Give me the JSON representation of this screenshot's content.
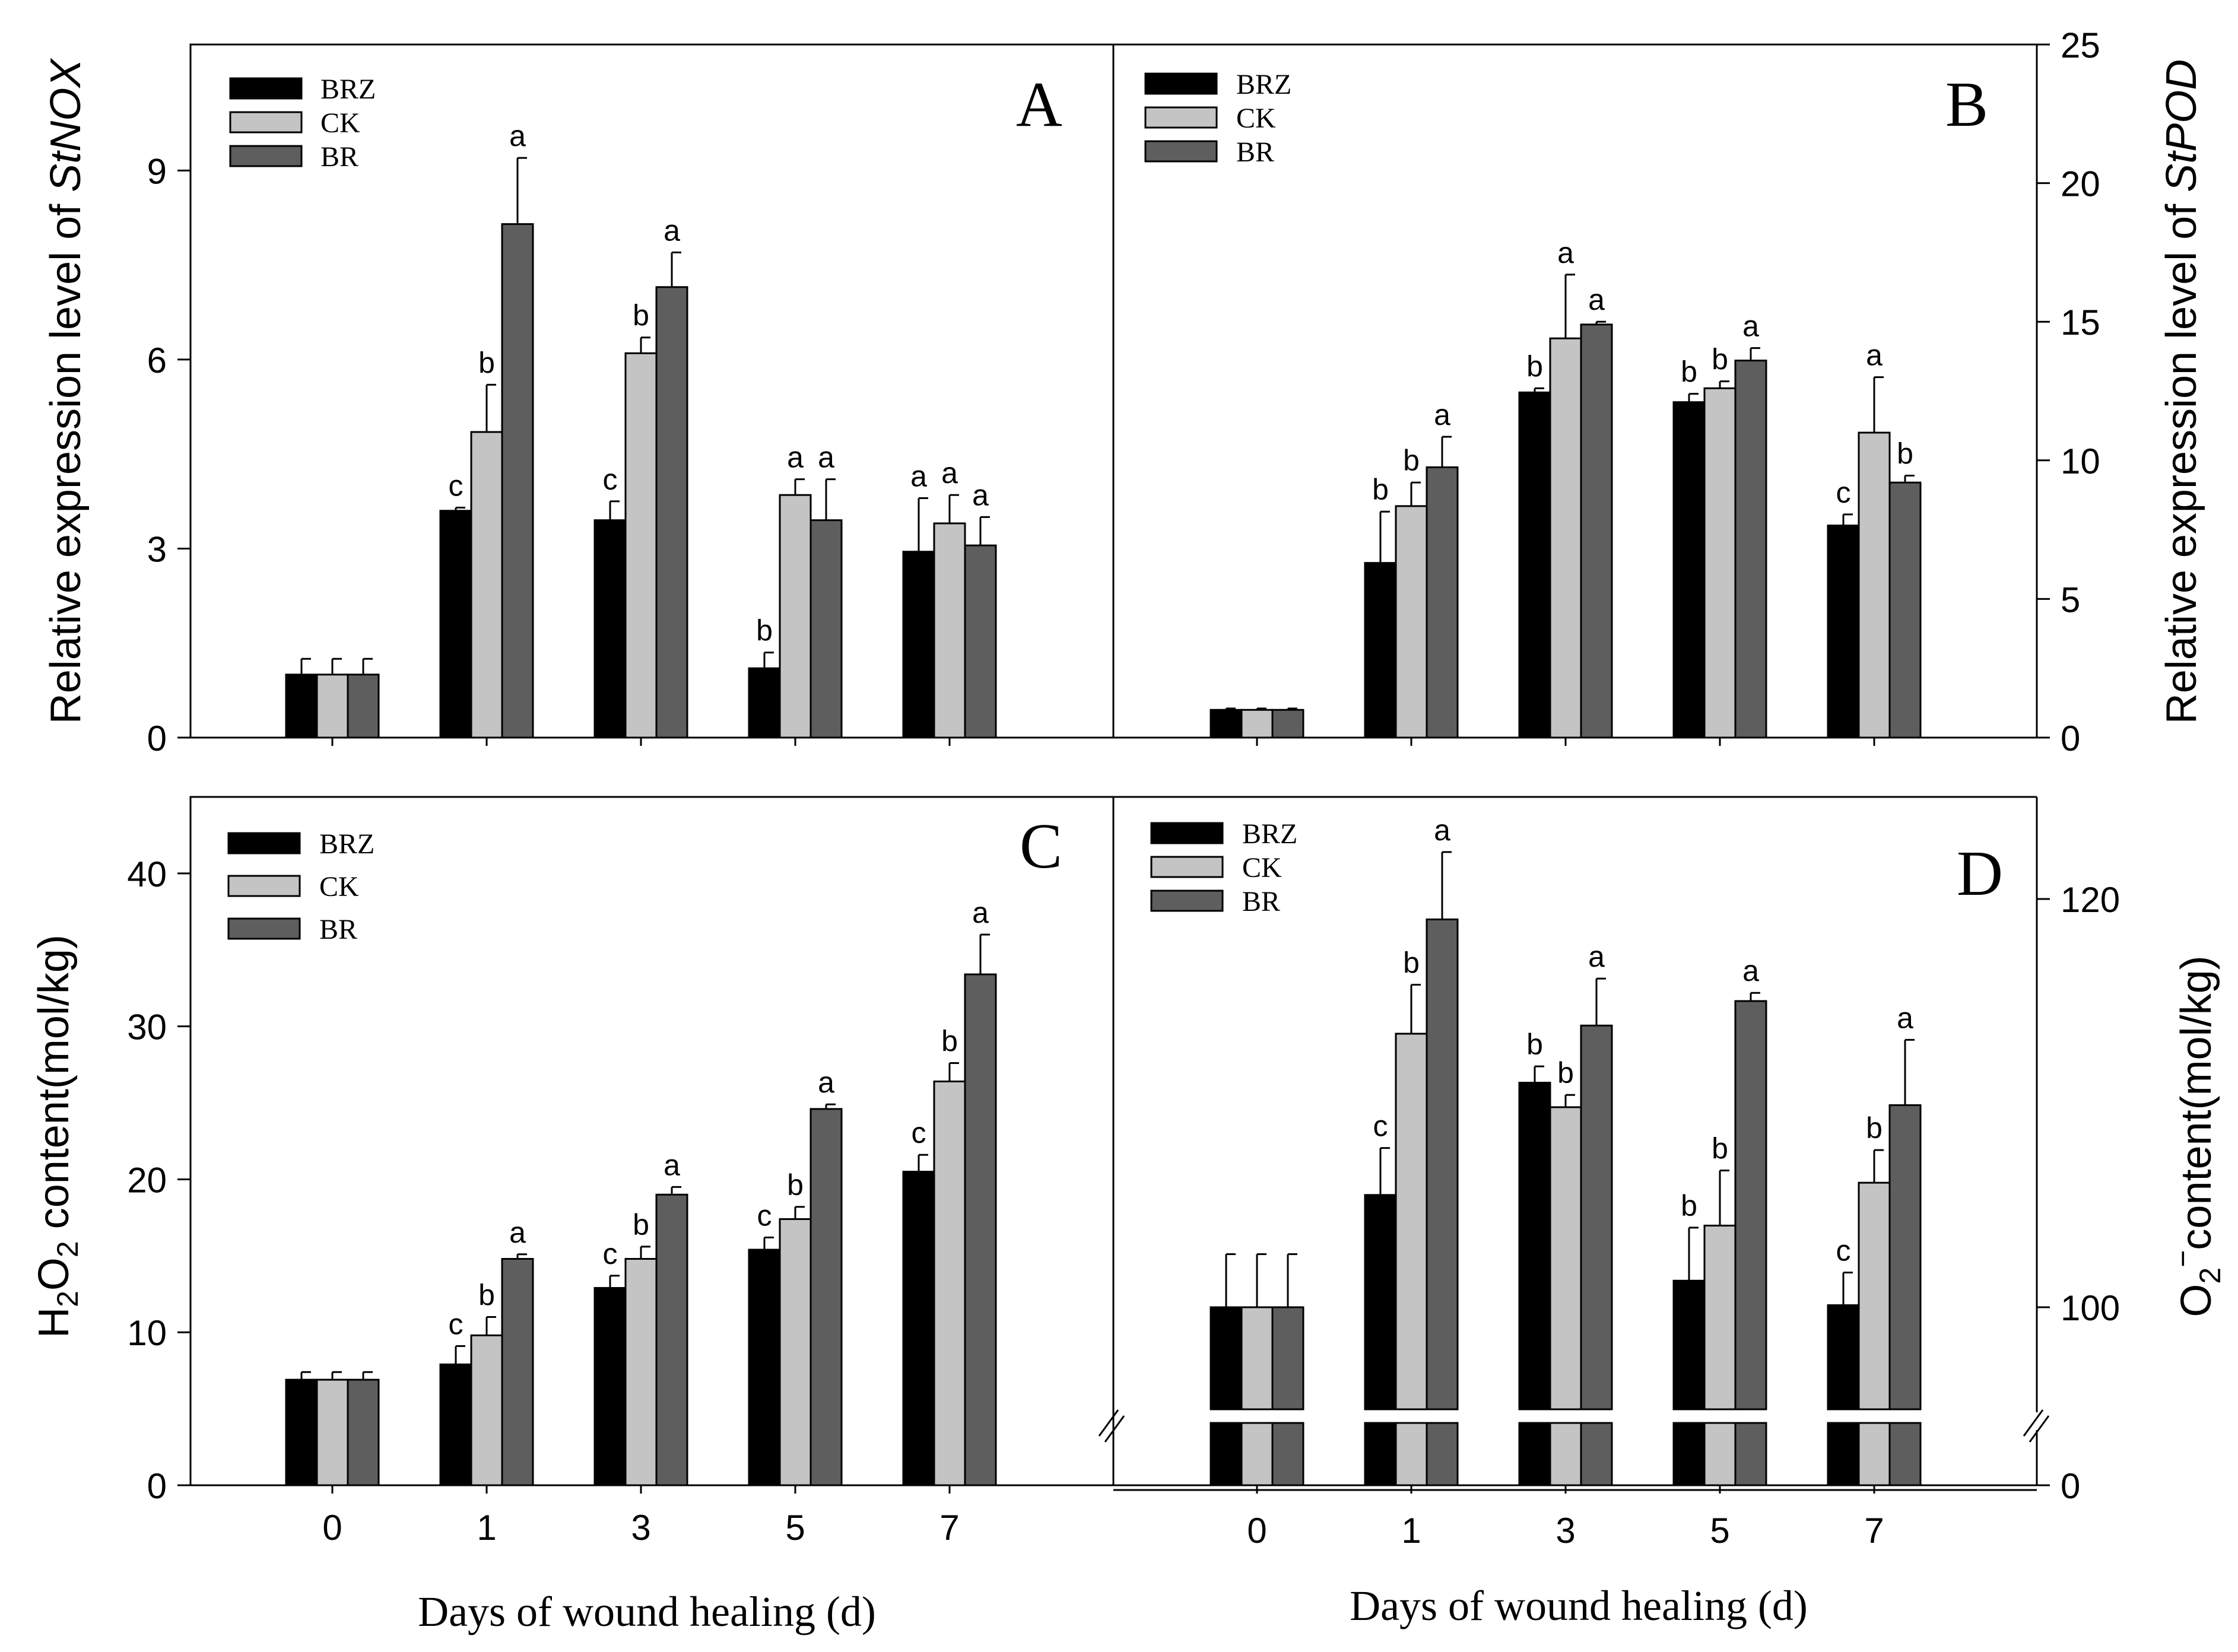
{
  "colors": {
    "BRZ": "#000000",
    "CK": "#c4c4c4",
    "BR": "#5e5e5e",
    "axis": "#000000"
  },
  "legend": [
    "BRZ",
    "CK",
    "BR"
  ],
  "xlabel": "Days of wound healing (d)",
  "chart_data": [
    {
      "type": "bar",
      "panel": "A",
      "ylabel_prefix": "Relative expression level of ",
      "ylabel_gene": "StNOX",
      "categories": [
        "0",
        "1",
        "3",
        "5",
        "7"
      ],
      "ylim": [
        0,
        11
      ],
      "yticks": [
        0,
        3,
        6,
        9
      ],
      "axis_side": "left",
      "series": [
        {
          "name": "BRZ",
          "values": [
            1.0,
            3.6,
            3.45,
            1.1,
            2.95
          ],
          "errors": [
            0.25,
            0.05,
            0.3,
            0.25,
            0.85
          ],
          "letters": [
            "",
            "c",
            "c",
            "b",
            "a"
          ]
        },
        {
          "name": "CK",
          "values": [
            1.0,
            4.85,
            6.1,
            3.85,
            3.4
          ],
          "errors": [
            0.25,
            0.75,
            0.25,
            0.25,
            0.45
          ],
          "letters": [
            "",
            "b",
            "b",
            "a",
            "a"
          ]
        },
        {
          "name": "BR",
          "values": [
            1.0,
            8.15,
            7.15,
            3.45,
            3.05
          ],
          "errors": [
            0.25,
            1.05,
            0.55,
            0.65,
            0.45
          ],
          "letters": [
            "",
            "a",
            "a",
            "a",
            "a"
          ]
        }
      ]
    },
    {
      "type": "bar",
      "panel": "B",
      "ylabel_prefix": "Relative expression level of ",
      "ylabel_gene": "StPOD",
      "categories": [
        "0",
        "1",
        "3",
        "5",
        "7"
      ],
      "ylim": [
        0,
        25
      ],
      "yticks": [
        0,
        5,
        10,
        15,
        20,
        25
      ],
      "axis_side": "right",
      "series": [
        {
          "name": "BRZ",
          "values": [
            1.0,
            6.3,
            12.45,
            12.1,
            7.65
          ],
          "errors": [
            0.05,
            1.85,
            0.15,
            0.3,
            0.4
          ],
          "letters": [
            "",
            "b",
            "b",
            "b",
            "c"
          ]
        },
        {
          "name": "CK",
          "values": [
            1.0,
            8.35,
            14.4,
            12.6,
            11.0
          ],
          "errors": [
            0.05,
            0.85,
            2.3,
            0.25,
            2.0
          ],
          "letters": [
            "",
            "b",
            "a",
            "b",
            "a"
          ]
        },
        {
          "name": "BR",
          "values": [
            1.0,
            9.75,
            14.9,
            13.6,
            9.2
          ],
          "errors": [
            0.05,
            1.1,
            0.1,
            0.45,
            0.25
          ],
          "letters": [
            "",
            "a",
            "a",
            "a",
            "b"
          ]
        }
      ]
    },
    {
      "type": "bar",
      "panel": "C",
      "ylabel": "H2O2 content(mol/kg)",
      "categories": [
        "0",
        "1",
        "3",
        "5",
        "7"
      ],
      "ylim": [
        0,
        45
      ],
      "yticks": [
        0,
        10,
        20,
        30,
        40
      ],
      "axis_side": "left",
      "series": [
        {
          "name": "BRZ",
          "values": [
            6.9,
            7.9,
            12.9,
            15.4,
            20.5
          ],
          "errors": [
            0.5,
            1.2,
            0.8,
            0.8,
            1.1
          ],
          "letters": [
            "",
            "c",
            "c",
            "c",
            "c"
          ]
        },
        {
          "name": "CK",
          "values": [
            6.9,
            9.8,
            14.8,
            17.4,
            26.4
          ],
          "errors": [
            0.5,
            1.2,
            0.8,
            0.8,
            1.2
          ],
          "letters": [
            "",
            "b",
            "b",
            "b",
            "b"
          ]
        },
        {
          "name": "BR",
          "values": [
            6.9,
            14.8,
            19.0,
            24.6,
            33.4
          ],
          "errors": [
            0.5,
            0.3,
            0.5,
            0.3,
            2.6
          ],
          "letters": [
            "",
            "a",
            "a",
            "a",
            "a"
          ]
        }
      ]
    },
    {
      "type": "bar",
      "panel": "D",
      "ylabel": "O2−content(mol/kg)",
      "categories": [
        "0",
        "1",
        "3",
        "5",
        "7"
      ],
      "ylim": [
        95,
        125
      ],
      "axis_break": [
        0,
        95
      ],
      "yticks": [
        0,
        100,
        120
      ],
      "axis_side": "right",
      "series": [
        {
          "name": "BRZ",
          "values": [
            100.0,
            105.5,
            111.0,
            101.3,
            100.1
          ],
          "errors": [
            2.6,
            2.3,
            0.8,
            2.6,
            1.6
          ],
          "letters": [
            "",
            "c",
            "b",
            "b",
            "c"
          ]
        },
        {
          "name": "CK",
          "values": [
            100.0,
            113.4,
            109.8,
            104.0,
            106.1
          ],
          "errors": [
            2.6,
            2.4,
            0.6,
            2.7,
            1.6
          ],
          "letters": [
            "",
            "b",
            "b",
            "b",
            "b"
          ]
        },
        {
          "name": "BR",
          "values": [
            100.0,
            119.0,
            113.8,
            115.0,
            109.9
          ],
          "errors": [
            2.6,
            3.3,
            2.3,
            0.4,
            3.2
          ],
          "letters": [
            "",
            "a",
            "a",
            "a",
            "a"
          ]
        }
      ]
    }
  ]
}
